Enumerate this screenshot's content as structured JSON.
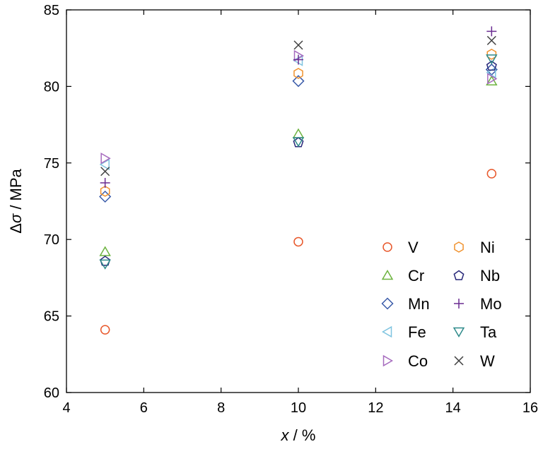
{
  "chart_data": {
    "type": "scatter",
    "xlabel_var": "x",
    "xlabel_unit": " / %",
    "ylabel_prefix": "Δ",
    "ylabel_var": "σ",
    "ylabel_unit": " / MPa",
    "xlim": [
      4,
      16
    ],
    "ylim": [
      60,
      85
    ],
    "xticks": [
      4,
      6,
      8,
      10,
      12,
      14,
      16
    ],
    "yticks": [
      60,
      65,
      70,
      75,
      80,
      85
    ],
    "grid": false,
    "legend_position": "bottom-right",
    "series": [
      {
        "name": "V",
        "marker": "circle",
        "color": "#E8572A",
        "x": [
          5,
          10,
          15
        ],
        "y": [
          64.1,
          69.85,
          74.3
        ]
      },
      {
        "name": "Cr",
        "marker": "triangle-up",
        "color": "#6DB33F",
        "x": [
          5,
          10,
          15
        ],
        "y": [
          69.2,
          76.9,
          80.35
        ]
      },
      {
        "name": "Mn",
        "marker": "diamond",
        "color": "#3A5BA9",
        "x": [
          5,
          10,
          15
        ],
        "y": [
          72.8,
          80.35,
          81.1
        ]
      },
      {
        "name": "Fe",
        "marker": "triangle-left",
        "color": "#7FC4E0",
        "x": [
          5,
          10,
          15
        ],
        "y": [
          74.9,
          81.7,
          80.9
        ]
      },
      {
        "name": "Co",
        "marker": "triangle-right",
        "color": "#A66BBE",
        "x": [
          5,
          10,
          15
        ],
        "y": [
          75.3,
          82.0,
          80.5
        ]
      },
      {
        "name": "Ni",
        "marker": "hexagon",
        "color": "#F0922E",
        "x": [
          5,
          10,
          15
        ],
        "y": [
          73.15,
          80.85,
          82.1
        ]
      },
      {
        "name": "Nb",
        "marker": "pentagon",
        "color": "#28287A",
        "x": [
          5,
          10,
          15
        ],
        "y": [
          68.6,
          76.35,
          81.35
        ]
      },
      {
        "name": "Mo",
        "marker": "plus",
        "color": "#6A2C91",
        "x": [
          5,
          10,
          15
        ],
        "y": [
          73.7,
          81.75,
          83.6
        ]
      },
      {
        "name": "Ta",
        "marker": "triangle-down",
        "color": "#2E8A8A",
        "x": [
          5,
          10,
          15
        ],
        "y": [
          68.4,
          76.4,
          81.8
        ]
      },
      {
        "name": "W",
        "marker": "x",
        "color": "#404040",
        "x": [
          5,
          10,
          15
        ],
        "y": [
          74.45,
          82.7,
          83.0
        ]
      }
    ],
    "legend_columns": [
      [
        "V",
        "Cr",
        "Mn",
        "Fe",
        "Co"
      ],
      [
        "Ni",
        "Nb",
        "Mo",
        "Ta",
        "W"
      ]
    ]
  }
}
